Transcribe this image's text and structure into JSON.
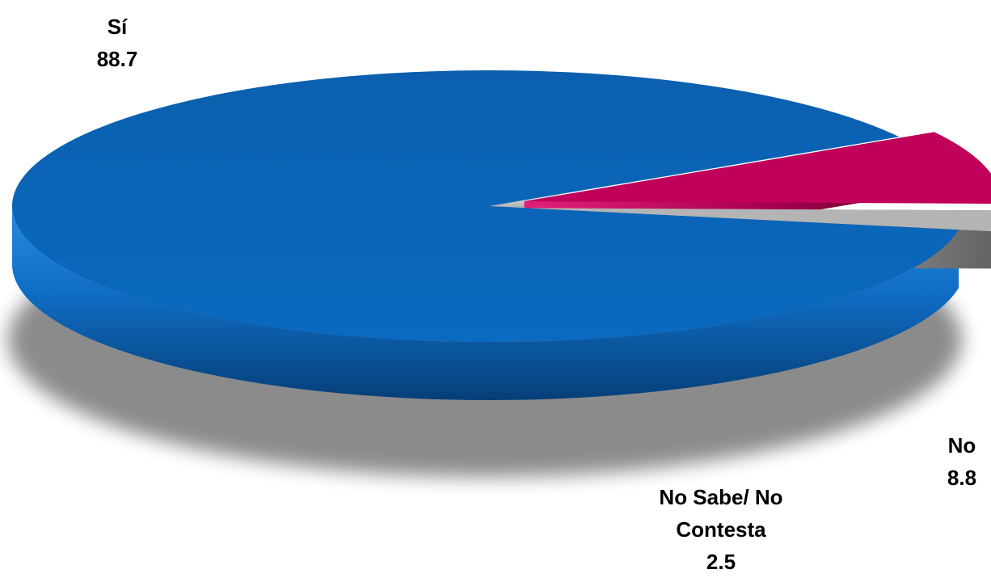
{
  "chart_data": {
    "type": "pie",
    "title": "",
    "slices": [
      {
        "label": "Sí",
        "value": 88.7,
        "value_text": "88.7",
        "color": "#0a66b8"
      },
      {
        "label": "No",
        "value": 8.8,
        "value_text": "8.8",
        "color": "#c0005a"
      },
      {
        "label_lines": [
          "No Sabe/ No",
          "Contesta"
        ],
        "label": "No Sabe/ No Contesta",
        "value": 2.5,
        "value_text": "2.5",
        "color": "#b4b4b4"
      }
    ],
    "style": "3d-exploded"
  }
}
